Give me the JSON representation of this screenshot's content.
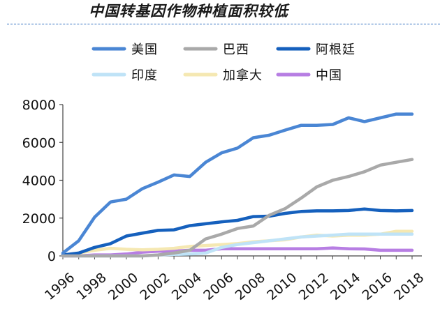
{
  "title": "中国转基因作物种植面积较低",
  "chart_data": {
    "type": "line",
    "title": "中国转基因作物种植面积较低",
    "xlabel": "",
    "ylabel": "",
    "ylim": [
      0,
      8000
    ],
    "xlim": [
      1996,
      2018
    ],
    "yticks": [
      "0",
      "2000",
      "4000",
      "6000",
      "8000"
    ],
    "xticks": [
      "1996",
      "1998",
      "2000",
      "2002",
      "2004",
      "2006",
      "2008",
      "2010",
      "2012",
      "2014",
      "2016",
      "2018"
    ],
    "grid": false,
    "legend": "top",
    "x": [
      1996,
      1997,
      1998,
      1999,
      2000,
      2001,
      2002,
      2003,
      2004,
      2005,
      2006,
      2007,
      2008,
      2009,
      2010,
      2011,
      2012,
      2013,
      2014,
      2015,
      2016,
      2017,
      2018
    ],
    "series": [
      {
        "name": "美国",
        "color": "#4a86d4",
        "values": [
          150,
          800,
          2050,
          2850,
          3000,
          3550,
          3900,
          4280,
          4200,
          4950,
          5450,
          5700,
          6250,
          6380,
          6650,
          6900,
          6900,
          6950,
          7300,
          7100,
          7300,
          7500,
          7500
        ]
      },
      {
        "name": "巴西",
        "color": "#a9a9a9",
        "values": [
          0,
          0,
          0,
          0,
          0,
          0,
          50,
          150,
          300,
          900,
          1150,
          1450,
          1580,
          2150,
          2500,
          3050,
          3650,
          4000,
          4200,
          4450,
          4800,
          4950,
          5100
        ]
      },
      {
        "name": "阿根廷",
        "color": "#1560bd",
        "values": [
          50,
          150,
          450,
          650,
          1050,
          1200,
          1350,
          1380,
          1600,
          1700,
          1800,
          1880,
          2080,
          2100,
          2250,
          2350,
          2380,
          2380,
          2400,
          2480,
          2400,
          2380,
          2400
        ]
      },
      {
        "name": "印度",
        "color": "#bfe3f7",
        "values": [
          0,
          0,
          0,
          0,
          0,
          0,
          50,
          80,
          100,
          150,
          450,
          600,
          700,
          800,
          900,
          1000,
          1050,
          1100,
          1150,
          1150,
          1150,
          1150,
          1150
        ]
      },
      {
        "name": "加拿大",
        "color": "#f5e8b2",
        "values": [
          0,
          150,
          300,
          400,
          350,
          320,
          350,
          400,
          500,
          550,
          600,
          650,
          750,
          800,
          850,
          1000,
          1100,
          1050,
          1100,
          1100,
          1150,
          1300,
          1300
        ]
      },
      {
        "name": "中国",
        "color": "#b77ee3",
        "values": [
          0,
          0,
          50,
          50,
          100,
          200,
          250,
          250,
          300,
          300,
          380,
          380,
          380,
          380,
          380,
          380,
          380,
          420,
          380,
          370,
          300,
          300,
          300
        ]
      }
    ]
  }
}
